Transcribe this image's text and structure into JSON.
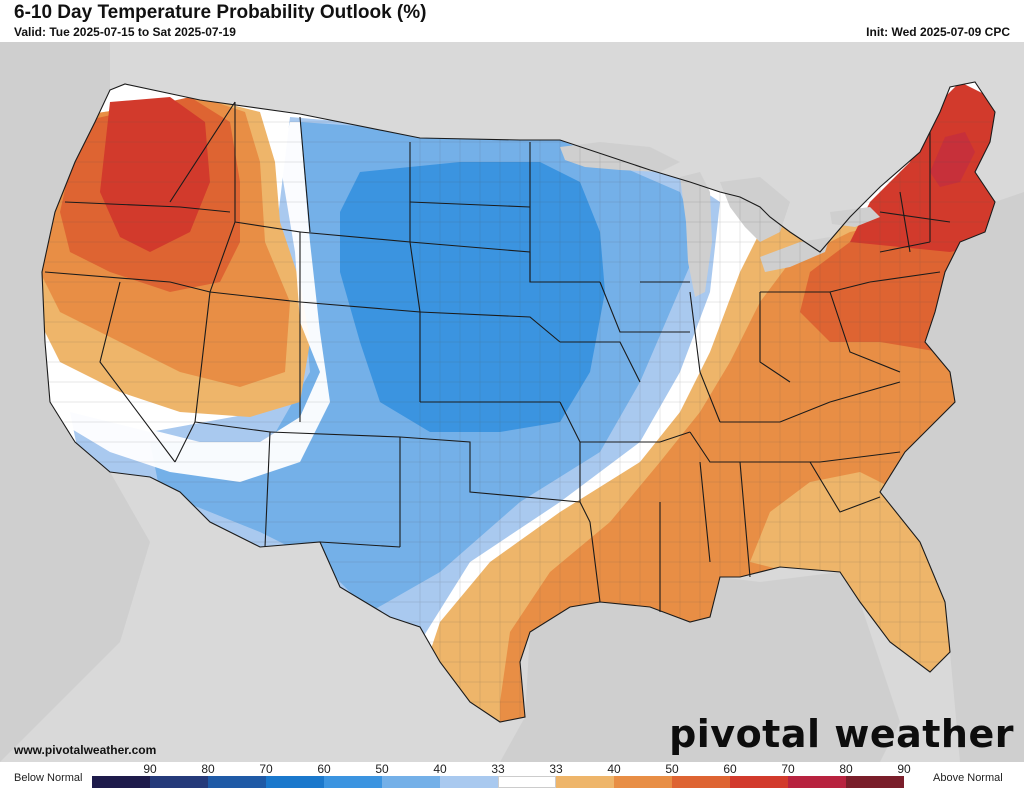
{
  "header": {
    "title": "6-10 Day Temperature Probability Outlook (%)",
    "valid": "Valid: Tue 2025-07-15 to Sat 2025-07-19",
    "init": "Init: Wed 2025-07-09 CPC"
  },
  "footer": {
    "url": "www.pivotalweather.com",
    "brand": "pivotal weather"
  },
  "colors": {
    "land": "#ffffff",
    "water": "#cfcfcf",
    "foreign_land": "#d9d9d9",
    "border": "#222222",
    "county": "#888888"
  },
  "legend": {
    "below_label": "Below Normal",
    "above_label": "Above Normal",
    "items": [
      {
        "label": "90",
        "color": "#1e1b4b"
      },
      {
        "label": "80",
        "color": "#253a7a"
      },
      {
        "label": "70",
        "color": "#1f5aa6"
      },
      {
        "label": "60",
        "color": "#1a78cc"
      },
      {
        "label": "50",
        "color": "#3b94e0"
      },
      {
        "label": "40",
        "color": "#74b0e8"
      },
      {
        "label": "33",
        "color": "#a9c9ef"
      },
      {
        "label": "33",
        "color": "#ffffff"
      },
      {
        "label": "40",
        "color": "#eeb56a"
      },
      {
        "label": "50",
        "color": "#e88e45"
      },
      {
        "label": "60",
        "color": "#de6432"
      },
      {
        "label": "70",
        "color": "#d23a2c"
      },
      {
        "label": "80",
        "color": "#b8233f"
      },
      {
        "label": "90",
        "color": "#7a1e2a"
      }
    ]
  }
}
